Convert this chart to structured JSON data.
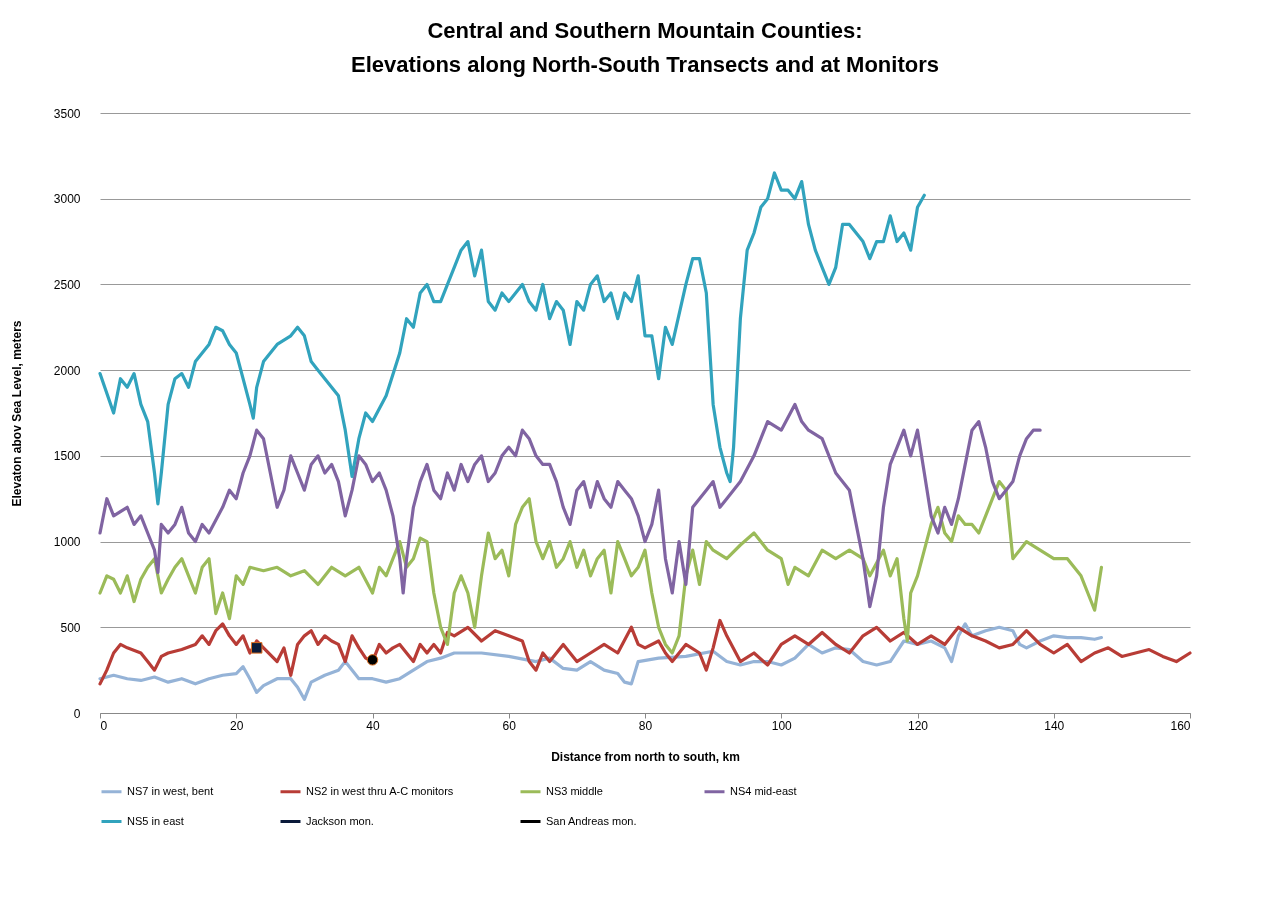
{
  "chart_data": {
    "type": "line",
    "title": "Central and Southern Mountain Counties:\nElevations along North-South Transects and at Monitors",
    "xlabel": "Distance from north to south, km",
    "ylabel": "Elevaton abov Sea Level, meters",
    "xlim": [
      0,
      160
    ],
    "xticks": [
      0,
      20,
      40,
      60,
      80,
      100,
      120,
      140,
      160
    ],
    "ylim": [
      0,
      3500
    ],
    "yticks": [
      0,
      500,
      1000,
      1500,
      2000,
      2500,
      3000,
      3500
    ],
    "grid": "y",
    "legend": "bottom",
    "series": [
      {
        "name": "NS7 in west, bent",
        "color": "#95b3d7",
        "x": [
          0,
          2,
          4,
          6,
          8,
          10,
          12,
          14,
          16,
          18,
          20,
          21,
          22,
          23,
          24,
          26,
          28,
          29,
          30,
          31,
          33,
          35,
          36,
          38,
          40,
          42,
          44,
          46,
          48,
          50,
          52,
          56,
          60,
          64,
          66,
          68,
          70,
          72,
          74,
          76,
          77,
          78,
          79,
          82,
          86,
          90,
          92,
          94,
          96,
          98,
          100,
          102,
          104,
          106,
          108,
          110,
          112,
          114,
          116,
          118,
          120,
          122,
          124,
          125,
          126,
          127,
          128,
          130,
          132,
          134,
          135,
          136,
          138,
          140,
          142,
          144,
          146,
          147
        ],
        "values": [
          200,
          220,
          200,
          190,
          210,
          180,
          200,
          170,
          200,
          220,
          230,
          270,
          200,
          120,
          160,
          200,
          200,
          150,
          80,
          180,
          220,
          250,
          300,
          200,
          200,
          180,
          200,
          250,
          300,
          320,
          350,
          350,
          330,
          300,
          320,
          260,
          250,
          300,
          250,
          230,
          180,
          170,
          300,
          320,
          330,
          360,
          300,
          280,
          300,
          300,
          280,
          320,
          400,
          350,
          380,
          370,
          300,
          280,
          300,
          420,
          400,
          420,
          380,
          300,
          450,
          520,
          450,
          480,
          500,
          480,
          400,
          380,
          420,
          450,
          440,
          440,
          430,
          440
        ]
      },
      {
        "name": "NS2 in west thru A-C monitors",
        "color": "#b83c36",
        "x": [
          0,
          1,
          2,
          3,
          4,
          6,
          7,
          8,
          9,
          10,
          12,
          14,
          15,
          16,
          17,
          18,
          19,
          20,
          21,
          22,
          23,
          24,
          26,
          27,
          28,
          29,
          30,
          31,
          32,
          33,
          34,
          35,
          36,
          37,
          38,
          39,
          40,
          41,
          42,
          43,
          44,
          45,
          46,
          47,
          48,
          49,
          50,
          51,
          52,
          54,
          56,
          58,
          60,
          62,
          63,
          64,
          65,
          66,
          68,
          70,
          72,
          74,
          76,
          78,
          79,
          80,
          82,
          83,
          84,
          86,
          88,
          89,
          90,
          91,
          92,
          94,
          96,
          98,
          100,
          102,
          104,
          106,
          108,
          110,
          112,
          114,
          116,
          118,
          120,
          122,
          124,
          126,
          128,
          130,
          132,
          134,
          136,
          138,
          140,
          142,
          144,
          146,
          148,
          150,
          152,
          154,
          156,
          158,
          160
        ],
        "values": [
          170,
          250,
          350,
          400,
          380,
          350,
          300,
          250,
          330,
          350,
          370,
          400,
          450,
          400,
          480,
          520,
          450,
          400,
          450,
          350,
          420,
          380,
          300,
          380,
          220,
          400,
          450,
          480,
          400,
          450,
          420,
          400,
          300,
          450,
          380,
          320,
          300,
          400,
          350,
          380,
          400,
          350,
          300,
          400,
          350,
          400,
          350,
          470,
          450,
          500,
          420,
          480,
          450,
          420,
          300,
          250,
          350,
          300,
          400,
          300,
          350,
          400,
          350,
          500,
          400,
          380,
          420,
          350,
          300,
          400,
          350,
          250,
          380,
          540,
          450,
          300,
          350,
          280,
          400,
          450,
          400,
          470,
          400,
          350,
          450,
          500,
          420,
          470,
          400,
          450,
          400,
          500,
          450,
          420,
          380,
          400,
          480,
          400,
          350,
          400,
          300,
          350,
          380,
          330,
          350,
          370,
          330,
          300,
          350
        ]
      },
      {
        "name": "NS3 middle",
        "color": "#9bbb59",
        "x": [
          0,
          1,
          2,
          3,
          4,
          5,
          6,
          7,
          8,
          9,
          10,
          11,
          12,
          13,
          14,
          15,
          16,
          17,
          18,
          19,
          20,
          21,
          22,
          24,
          26,
          28,
          30,
          32,
          34,
          36,
          38,
          40,
          41,
          42,
          43,
          44,
          45,
          46,
          47,
          48,
          49,
          50,
          51,
          52,
          53,
          54,
          55,
          56,
          57,
          58,
          59,
          60,
          61,
          62,
          63,
          64,
          65,
          66,
          67,
          68,
          69,
          70,
          71,
          72,
          73,
          74,
          75,
          76,
          77,
          78,
          79,
          80,
          81,
          82,
          83,
          84,
          85,
          86,
          87,
          88,
          89,
          90,
          92,
          94,
          96,
          98,
          100,
          101,
          102,
          104,
          106,
          108,
          110,
          112,
          113,
          115,
          116,
          117,
          118,
          118.5,
          119,
          120,
          122,
          123,
          124,
          125,
          126,
          127,
          128,
          129,
          130,
          131,
          132,
          133,
          134,
          135,
          136,
          138,
          140,
          142,
          144,
          145,
          146,
          147
        ],
        "values": [
          700,
          800,
          780,
          700,
          800,
          650,
          780,
          850,
          900,
          700,
          780,
          850,
          900,
          800,
          700,
          850,
          900,
          580,
          700,
          550,
          800,
          750,
          850,
          830,
          850,
          800,
          830,
          750,
          850,
          800,
          850,
          700,
          850,
          800,
          900,
          1000,
          850,
          900,
          1020,
          1000,
          700,
          500,
          400,
          700,
          800,
          700,
          500,
          800,
          1050,
          900,
          950,
          800,
          1100,
          1200,
          1250,
          1000,
          900,
          1000,
          850,
          900,
          1000,
          850,
          950,
          800,
          900,
          950,
          700,
          1000,
          900,
          800,
          850,
          950,
          700,
          500,
          400,
          350,
          450,
          800,
          950,
          750,
          1000,
          950,
          900,
          980,
          1050,
          950,
          900,
          750,
          850,
          800,
          950,
          900,
          950,
          900,
          800,
          950,
          800,
          900,
          550,
          420,
          700,
          800,
          1100,
          1200,
          1050,
          1000,
          1150,
          1100,
          1100,
          1050,
          1150,
          1250,
          1350,
          1300,
          900,
          950,
          1000,
          950,
          900,
          900,
          800,
          700,
          600,
          850
        ]
      },
      {
        "name": "NS4 mid-east",
        "color": "#8064a2",
        "x": [
          0,
          1,
          2,
          4,
          5,
          6,
          7,
          8,
          8.5,
          9,
          10,
          11,
          12,
          13,
          14,
          15,
          16,
          18,
          19,
          20,
          21,
          22,
          23,
          24,
          25,
          26,
          27,
          28,
          29,
          30,
          31,
          32,
          33,
          34,
          35,
          36,
          37,
          38,
          39,
          40,
          41,
          42,
          43,
          44,
          44.5,
          45,
          46,
          47,
          48,
          49,
          50,
          51,
          52,
          53,
          54,
          55,
          56,
          57,
          58,
          59,
          60,
          61,
          62,
          63,
          64,
          65,
          66,
          67,
          68,
          69,
          70,
          71,
          72,
          73,
          74,
          75,
          76,
          77,
          78,
          79,
          80,
          81,
          82,
          83,
          84,
          85,
          86,
          87,
          88,
          89,
          90,
          91,
          92,
          94,
          96,
          98,
          100,
          102,
          103,
          104,
          106,
          108,
          110,
          111,
          112,
          113,
          114,
          115,
          116,
          117,
          118,
          119,
          120,
          121,
          122,
          123,
          124,
          125,
          126,
          127,
          128,
          129,
          130,
          131,
          132,
          133,
          134,
          135,
          136,
          137,
          138
        ],
        "values": [
          1050,
          1250,
          1150,
          1200,
          1100,
          1150,
          1050,
          950,
          820,
          1100,
          1050,
          1100,
          1200,
          1050,
          1000,
          1100,
          1050,
          1200,
          1300,
          1250,
          1400,
          1500,
          1650,
          1600,
          1400,
          1200,
          1300,
          1500,
          1400,
          1300,
          1450,
          1500,
          1400,
          1450,
          1350,
          1150,
          1300,
          1500,
          1450,
          1350,
          1400,
          1300,
          1150,
          900,
          700,
          900,
          1200,
          1350,
          1450,
          1300,
          1250,
          1400,
          1300,
          1450,
          1350,
          1450,
          1500,
          1350,
          1400,
          1500,
          1550,
          1500,
          1650,
          1600,
          1500,
          1450,
          1450,
          1350,
          1200,
          1100,
          1300,
          1350,
          1200,
          1350,
          1250,
          1200,
          1350,
          1300,
          1250,
          1150,
          1000,
          1100,
          1300,
          900,
          700,
          1000,
          750,
          1200,
          1250,
          1300,
          1350,
          1200,
          1250,
          1350,
          1500,
          1700,
          1650,
          1800,
          1700,
          1650,
          1600,
          1400,
          1300,
          1100,
          900,
          620,
          800,
          1200,
          1450,
          1550,
          1650,
          1500,
          1650,
          1400,
          1150,
          1050,
          1200,
          1100,
          1250,
          1450,
          1650,
          1700,
          1550,
          1350,
          1250,
          1300,
          1350,
          1500,
          1600,
          1650,
          1650
        ]
      },
      {
        "name": "NS5 in east",
        "color": "#31a3bd",
        "x": [
          0,
          2,
          3,
          4,
          5,
          6,
          7,
          8,
          8.5,
          9,
          10,
          11,
          12,
          13,
          14,
          16,
          17,
          18,
          19,
          20,
          21,
          22,
          22.5,
          23,
          24,
          26,
          28,
          29,
          30,
          31,
          32,
          34,
          35,
          36,
          37,
          38,
          39,
          40,
          42,
          44,
          45,
          46,
          47,
          48,
          49,
          50,
          52,
          53,
          54,
          55,
          56,
          57,
          58,
          59,
          60,
          62,
          63,
          64,
          65,
          66,
          67,
          68,
          69,
          70,
          71,
          72,
          73,
          74,
          75,
          76,
          77,
          78,
          79,
          80,
          81,
          82,
          83,
          84,
          86,
          87,
          88,
          89,
          90,
          91,
          92,
          92.5,
          93,
          94,
          95,
          96,
          97,
          98,
          99,
          100,
          101,
          102,
          103,
          104,
          105,
          106,
          107,
          108,
          109,
          110,
          111,
          112,
          113,
          114,
          115,
          116,
          117,
          118,
          119,
          120,
          121
        ],
        "values": [
          1980,
          1750,
          1950,
          1900,
          1980,
          1800,
          1700,
          1400,
          1220,
          1400,
          1800,
          1950,
          1980,
          1900,
          2050,
          2150,
          2250,
          2230,
          2150,
          2100,
          1950,
          1800,
          1720,
          1900,
          2050,
          2150,
          2200,
          2250,
          2200,
          2050,
          2000,
          1900,
          1850,
          1650,
          1380,
          1600,
          1750,
          1700,
          1850,
          2100,
          2300,
          2250,
          2450,
          2500,
          2400,
          2400,
          2600,
          2700,
          2750,
          2550,
          2700,
          2400,
          2350,
          2450,
          2400,
          2500,
          2400,
          2350,
          2500,
          2300,
          2400,
          2350,
          2150,
          2400,
          2350,
          2500,
          2550,
          2400,
          2450,
          2300,
          2450,
          2400,
          2550,
          2200,
          2200,
          1950,
          2250,
          2150,
          2500,
          2650,
          2650,
          2450,
          1800,
          1550,
          1400,
          1350,
          1550,
          2300,
          2700,
          2800,
          2950,
          3000,
          3150,
          3050,
          3050,
          3000,
          3100,
          2850,
          2700,
          2600,
          2500,
          2600,
          2850,
          2850,
          2800,
          2750,
          2650,
          2750,
          2750,
          2900,
          2750,
          2800,
          2700,
          2950,
          3020
        ]
      },
      {
        "name": "Jackson mon.",
        "type": "scatter",
        "marker": "square",
        "color": "#0a1a3a",
        "x": [
          23
        ],
        "values": [
          380
        ]
      },
      {
        "name": "San Andreas mon.",
        "type": "scatter",
        "marker": "circle",
        "color": "#000000",
        "x": [
          40
        ],
        "values": [
          310
        ]
      }
    ]
  }
}
